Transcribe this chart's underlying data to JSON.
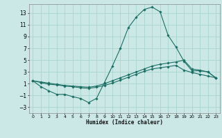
{
  "xlabel": "Humidex (Indice chaleur)",
  "bg_color": "#cce8e6",
  "grid_color": "#a8d4d0",
  "line_color": "#1a6e64",
  "xlim": [
    -0.5,
    23.5
  ],
  "ylim": [
    -4.0,
    14.5
  ],
  "xticks": [
    0,
    1,
    2,
    3,
    4,
    5,
    6,
    7,
    8,
    9,
    10,
    11,
    12,
    13,
    14,
    15,
    16,
    17,
    18,
    19,
    20,
    21,
    22,
    23
  ],
  "yticks": [
    -3,
    -1,
    1,
    3,
    5,
    7,
    9,
    11,
    13
  ],
  "line1_x": [
    0,
    1,
    2,
    3,
    4,
    5,
    6,
    7,
    8,
    9,
    10,
    11,
    12,
    13,
    14,
    15,
    16,
    17,
    18,
    19,
    20,
    21,
    22,
    23
  ],
  "line1_y": [
    1.5,
    0.5,
    -0.2,
    -0.8,
    -0.8,
    -1.2,
    -1.5,
    -2.2,
    -1.5,
    1.2,
    4.0,
    7.0,
    10.5,
    12.3,
    13.6,
    14.0,
    13.2,
    9.2,
    7.2,
    4.8,
    3.2,
    3.2,
    3.0,
    2.0
  ],
  "line2_x": [
    0,
    1,
    2,
    3,
    4,
    5,
    6,
    7,
    8,
    9,
    10,
    11,
    12,
    13,
    14,
    15,
    16,
    17,
    18,
    19,
    20,
    21,
    22,
    23
  ],
  "line2_y": [
    1.5,
    1.3,
    1.1,
    0.9,
    0.7,
    0.6,
    0.5,
    0.4,
    0.6,
    1.0,
    1.5,
    2.0,
    2.5,
    3.0,
    3.5,
    4.0,
    4.3,
    4.5,
    4.7,
    5.0,
    3.5,
    3.3,
    3.0,
    2.0
  ],
  "line3_x": [
    0,
    1,
    2,
    3,
    4,
    5,
    6,
    7,
    8,
    9,
    10,
    11,
    12,
    13,
    14,
    15,
    16,
    17,
    18,
    19,
    20,
    21,
    22,
    23
  ],
  "line3_y": [
    1.5,
    1.2,
    0.9,
    0.8,
    0.6,
    0.5,
    0.3,
    0.2,
    0.4,
    0.7,
    1.1,
    1.6,
    2.1,
    2.6,
    3.1,
    3.5,
    3.7,
    3.9,
    4.1,
    3.3,
    2.9,
    2.6,
    2.3,
    2.0
  ]
}
